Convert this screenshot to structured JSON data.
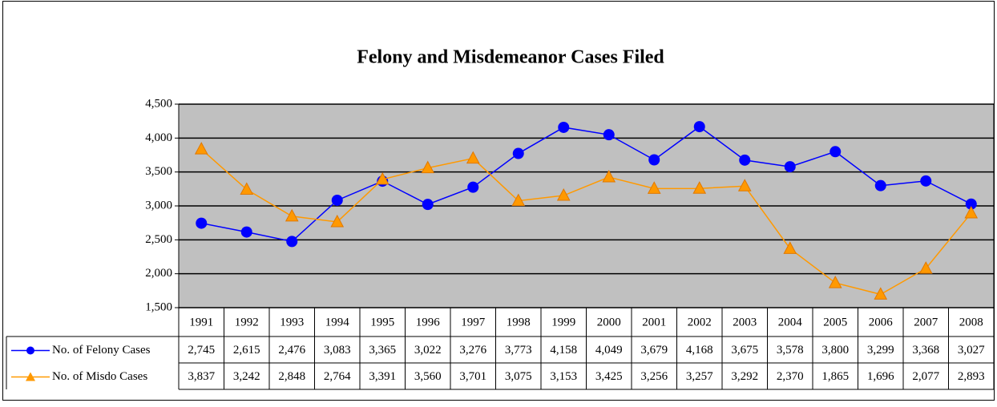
{
  "chart_data": {
    "type": "line",
    "title": "Felony and Misdemeanor Cases Filed",
    "categories": [
      "1991",
      "1992",
      "1993",
      "1994",
      "1995",
      "1996",
      "1997",
      "1998",
      "1999",
      "2000",
      "2001",
      "2002",
      "2003",
      "2004",
      "2005",
      "2006",
      "2007",
      "2008"
    ],
    "series": [
      {
        "name": "No. of Felony Cases",
        "color": "#0000ff",
        "marker": "circle",
        "values": [
          2745,
          2615,
          2476,
          3083,
          3365,
          3022,
          3276,
          3773,
          4158,
          4049,
          3679,
          4168,
          3675,
          3578,
          3800,
          3299,
          3368,
          3027
        ],
        "value_labels": [
          "2,745",
          "2,615",
          "2,476",
          "3,083",
          "3,365",
          "3,022",
          "3,276",
          "3,773",
          "4,158",
          "4,049",
          "3,679",
          "4,168",
          "3,675",
          "3,578",
          "3,800",
          "3,299",
          "3,368",
          "3,027"
        ]
      },
      {
        "name": "No. of Misdo Cases",
        "color": "#ff9900",
        "marker": "triangle",
        "values": [
          3837,
          3242,
          2848,
          2764,
          3391,
          3560,
          3701,
          3075,
          3153,
          3425,
          3256,
          3257,
          3292,
          2370,
          1865,
          1696,
          2077,
          2893
        ],
        "value_labels": [
          "3,837",
          "3,242",
          "2,848",
          "2,764",
          "3,391",
          "3,560",
          "3,701",
          "3,075",
          "3,153",
          "3,425",
          "3,256",
          "3,257",
          "3,292",
          "2,370",
          "1,865",
          "1,696",
          "2,077",
          "2,893"
        ]
      }
    ],
    "ylim": [
      1500,
      4500
    ],
    "yticks": [
      {
        "value": 1500,
        "label": "1,500"
      },
      {
        "value": 2000,
        "label": "2,000"
      },
      {
        "value": 2500,
        "label": "2,500"
      },
      {
        "value": 3000,
        "label": "3,000"
      },
      {
        "value": 3500,
        "label": "3,500"
      },
      {
        "value": 4000,
        "label": "4,000"
      },
      {
        "value": 4500,
        "label": "4,500"
      }
    ],
    "grid": true,
    "legend": "data-table"
  }
}
